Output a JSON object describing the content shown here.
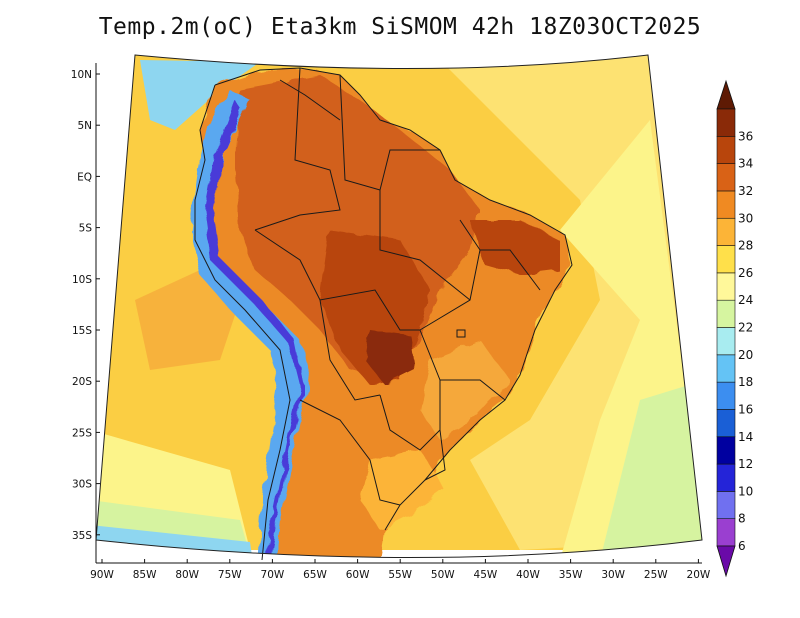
{
  "title": "Temp.2m(oC) Eta3km SiSMOM 42h 18Z03OCT2025",
  "lat_labels": [
    "10N",
    "5N",
    "EQ",
    "5S",
    "10S",
    "15S",
    "20S",
    "25S",
    "30S",
    "35S"
  ],
  "lon_labels": [
    "90W",
    "85W",
    "80W",
    "75W",
    "70W",
    "65W",
    "60W",
    "55W",
    "50W",
    "45W",
    "40W",
    "35W",
    "30W",
    "25W",
    "20W"
  ],
  "colorbar": {
    "labels": [
      "6",
      "8",
      "10",
      "12",
      "14",
      "16",
      "18",
      "20",
      "22",
      "24",
      "26",
      "28",
      "30",
      "32",
      "34",
      "36"
    ],
    "colors": [
      "#6a0aa8",
      "#9a3fd0",
      "#7070f0",
      "#2424d8",
      "#0000a0",
      "#1a5fd6",
      "#3c8ef0",
      "#64c3f5",
      "#a8ecf0",
      "#d6f5a0",
      "#fff89a",
      "#ffe04a",
      "#fcb437",
      "#f08a22",
      "#d96216",
      "#b8450c",
      "#8a2a08",
      "#5e1a04"
    ],
    "top_color": "#5e1a04",
    "bottom_color": "#6a0aa8"
  },
  "palette": {
    "ocean_warm": "#fbce43",
    "ocean_mid": "#fde272",
    "ocean_cool": "#fcf48a",
    "ocean_cold": "#d6f3a0",
    "coast_cold": "#8ed6f0",
    "land_hot": "#d2601a",
    "land_hotter": "#b8450c",
    "land_warm": "#ec8a28",
    "andes_cold": "#4a3ad8",
    "andes_mid": "#5aa8f0",
    "border": "#1a1a1a"
  }
}
